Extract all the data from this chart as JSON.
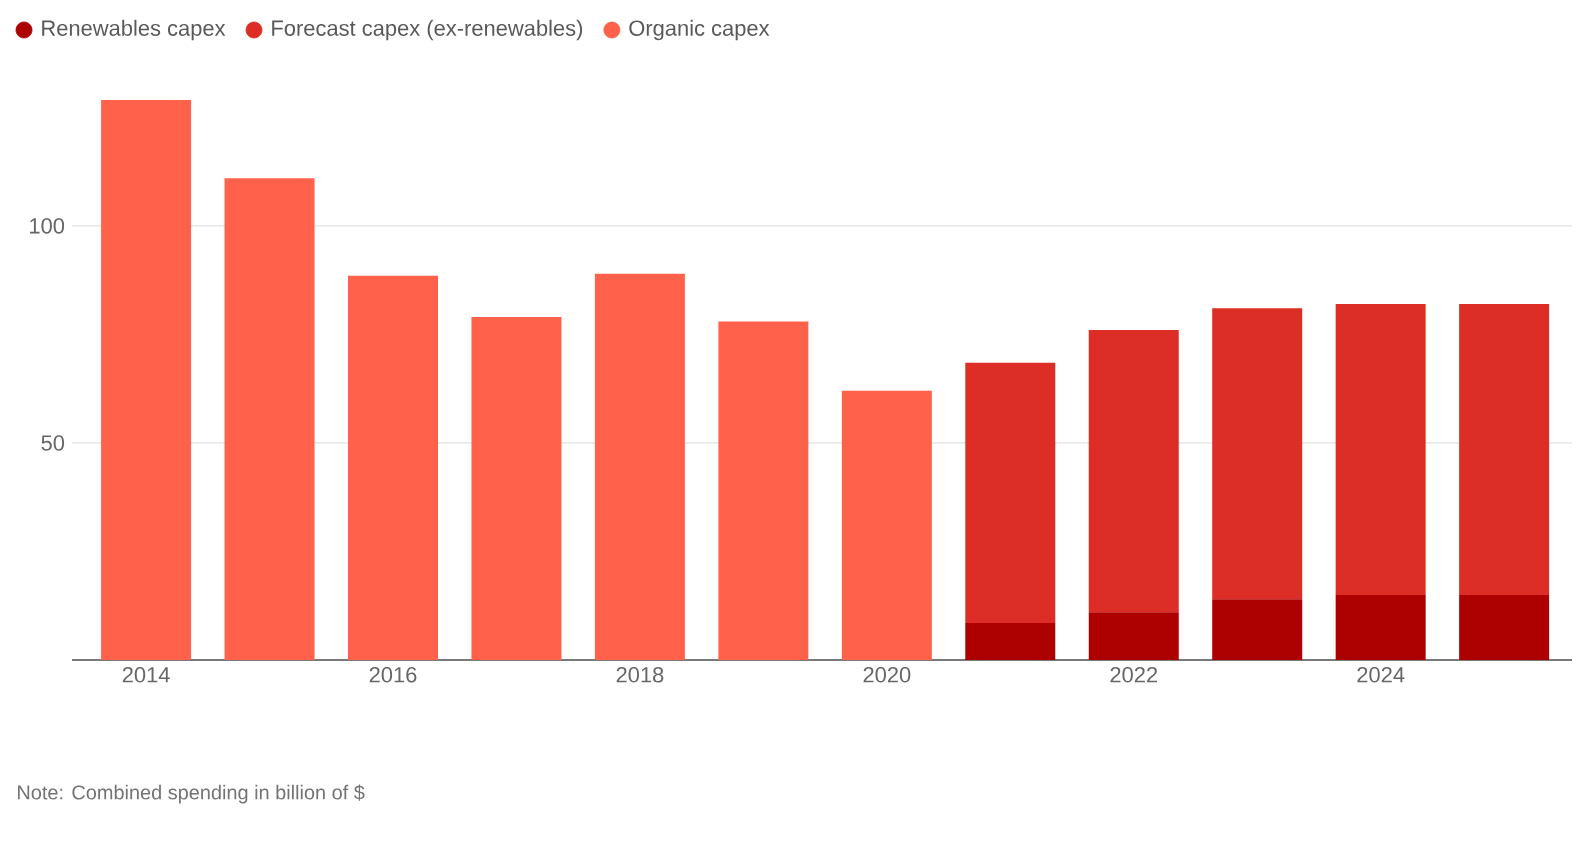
{
  "chart_data": {
    "type": "bar",
    "stacked": true,
    "categories": [
      "2014",
      null,
      "2016",
      null,
      "2018",
      null,
      "2020",
      null,
      "2022",
      null,
      "2024",
      null
    ],
    "series": [
      {
        "name": "Renewables capex",
        "color": "#ad0000",
        "values": [
          null,
          null,
          null,
          null,
          null,
          null,
          null,
          8.5,
          11,
          14,
          15,
          15
        ]
      },
      {
        "name": "Forecast capex (ex-renewables)",
        "color": "#dc2e26",
        "values": [
          null,
          null,
          null,
          null,
          null,
          null,
          null,
          60,
          65,
          67,
          67,
          67
        ]
      },
      {
        "name": "Organic capex",
        "color": "#ff614a",
        "values": [
          129,
          111,
          88.5,
          79,
          89,
          78,
          62,
          null,
          null,
          null,
          null,
          null
        ]
      }
    ],
    "ylim": [
      0,
      129
    ],
    "yticks": [
      50,
      100
    ],
    "grid": "y",
    "legend": "top left",
    "marker": "circle",
    "annotations": [
      "Note: Combined spending in billion of $"
    ]
  }
}
